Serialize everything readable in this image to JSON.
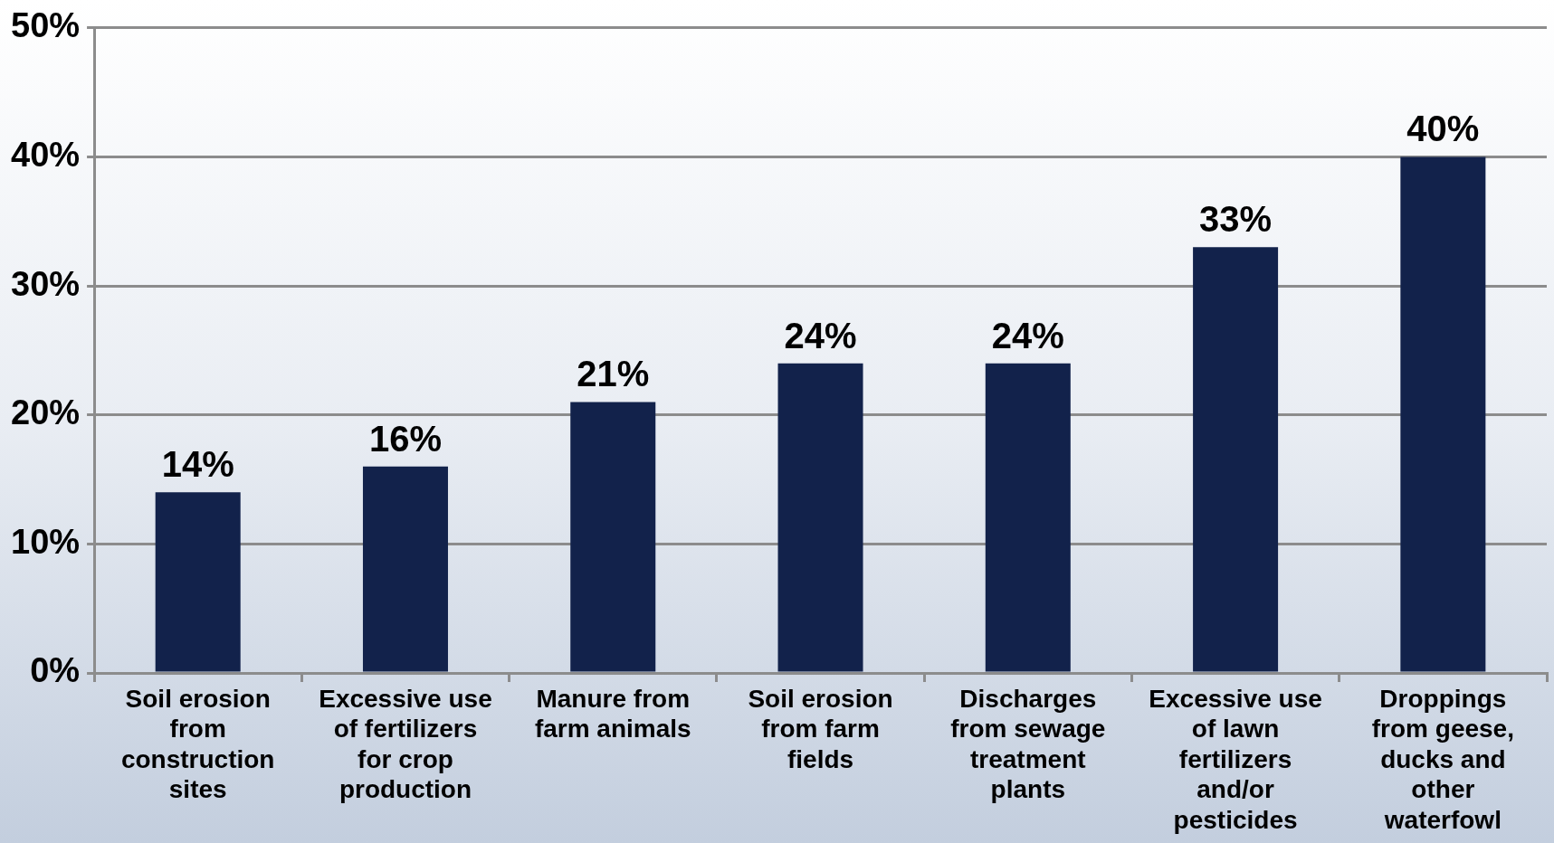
{
  "chart_data": {
    "type": "bar",
    "categories": [
      "Soil erosion from construction sites",
      "Excessive use of fertilizers for crop production",
      "Manure from farm animals",
      "Soil erosion from farm fields",
      "Discharges from sewage treatment plants",
      "Excessive use of lawn fertilizers and/or pesticides",
      "Droppings from geese, ducks and other waterfowl"
    ],
    "values": [
      14,
      16,
      21,
      24,
      24,
      33,
      40
    ],
    "color": "#12224b",
    "ylim": [
      0,
      50
    ],
    "yticks": [
      {
        "value": 0,
        "label": "0%"
      },
      {
        "value": 10,
        "label": "10%"
      },
      {
        "value": 20,
        "label": "20%"
      },
      {
        "value": 30,
        "label": "30%"
      },
      {
        "value": 40,
        "label": "40%"
      },
      {
        "value": 50,
        "label": "50%"
      }
    ],
    "value_labels": [
      "14%",
      "16%",
      "21%",
      "24%",
      "24%",
      "33%",
      "40%"
    ],
    "grid": "y",
    "legend": false
  }
}
